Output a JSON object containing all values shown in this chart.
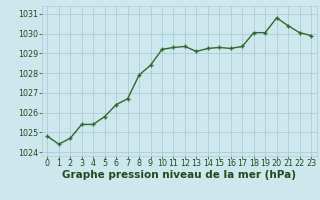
{
  "x": [
    0,
    1,
    2,
    3,
    4,
    5,
    6,
    7,
    8,
    9,
    10,
    11,
    12,
    13,
    14,
    15,
    16,
    17,
    18,
    19,
    20,
    21,
    22,
    23
  ],
  "y": [
    1024.8,
    1024.4,
    1024.7,
    1025.4,
    1025.4,
    1025.8,
    1026.4,
    1026.7,
    1027.9,
    1028.4,
    1029.2,
    1029.3,
    1029.35,
    1029.1,
    1029.25,
    1029.3,
    1029.25,
    1029.35,
    1030.05,
    1030.05,
    1030.8,
    1030.4,
    1030.05,
    1029.9
  ],
  "line_color": "#2d6a2d",
  "marker": "+",
  "marker_size": 3.5,
  "linewidth": 1.0,
  "bg_color": "#cce8ee",
  "grid_color": "#aacdd6",
  "xlabel": "Graphe pression niveau de la mer (hPa)",
  "xlabel_fontsize": 7.5,
  "xlabel_color": "#1a4d1a",
  "tick_color": "#1a4d1a",
  "tick_fontsize": 5.8,
  "ylim": [
    1023.8,
    1031.4
  ],
  "yticks": [
    1024,
    1025,
    1026,
    1027,
    1028,
    1029,
    1030,
    1031
  ],
  "xlim": [
    -0.5,
    23.5
  ],
  "xticks": [
    0,
    1,
    2,
    3,
    4,
    5,
    6,
    7,
    8,
    9,
    10,
    11,
    12,
    13,
    14,
    15,
    16,
    17,
    18,
    19,
    20,
    21,
    22,
    23
  ]
}
